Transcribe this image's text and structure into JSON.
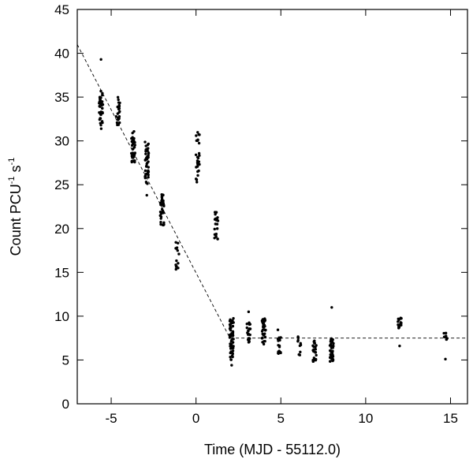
{
  "chart_data": {
    "type": "scatter",
    "title": "",
    "xlabel": "Time (MJD - 55112.0)",
    "ylabel_main": "Count PCU",
    "ylabel_sup1": "-1",
    "ylabel_mid": " s",
    "ylabel_sup2": "-1",
    "xlim": [
      -7,
      16
    ],
    "ylim": [
      0,
      45
    ],
    "xticks": [
      -5,
      0,
      5,
      10,
      15
    ],
    "xtick_labels": [
      "-5",
      "0",
      "5",
      "10",
      "15"
    ],
    "yticks": [
      0,
      5,
      10,
      15,
      20,
      25,
      30,
      35,
      40,
      45
    ],
    "ytick_labels": [
      "0",
      "5",
      "10",
      "15",
      "20",
      "25",
      "30",
      "35",
      "40",
      "45"
    ],
    "grid": false,
    "fit_line": {
      "style": "dashed",
      "points": [
        [
          -7,
          41.0
        ],
        [
          2.0,
          7.5
        ],
        [
          16,
          7.5
        ]
      ]
    },
    "clusters": [
      {
        "x": -5.6,
        "ymin": 31.3,
        "ymax": 35.8,
        "n": 40,
        "extra": [
          39.3
        ]
      },
      {
        "x": -4.6,
        "ymin": 31.8,
        "ymax": 35.0,
        "n": 24
      },
      {
        "x": -3.7,
        "ymin": 27.2,
        "ymax": 31.2,
        "n": 36
      },
      {
        "x": -2.9,
        "ymin": 25.0,
        "ymax": 30.0,
        "n": 44,
        "extra": [
          23.8
        ]
      },
      {
        "x": -2.0,
        "ymin": 20.3,
        "ymax": 23.9,
        "n": 34
      },
      {
        "x": -1.1,
        "ymin": 15.3,
        "ymax": 19.0,
        "n": 14
      },
      {
        "x": 0.1,
        "ymin": 25.2,
        "ymax": 31.2,
        "n": 28
      },
      {
        "x": 1.2,
        "ymin": 18.3,
        "ymax": 22.0,
        "n": 22
      },
      {
        "x": 2.1,
        "ymin": 5.0,
        "ymax": 9.8,
        "n": 60,
        "extra": [
          4.4
        ]
      },
      {
        "x": 3.1,
        "ymin": 6.8,
        "ymax": 9.3,
        "n": 22,
        "extra": [
          10.5
        ]
      },
      {
        "x": 4.0,
        "ymin": 6.8,
        "ymax": 9.8,
        "n": 34
      },
      {
        "x": 4.9,
        "ymin": 5.7,
        "ymax": 8.8,
        "n": 16
      },
      {
        "x": 6.1,
        "ymin": 5.5,
        "ymax": 7.9,
        "n": 10
      },
      {
        "x": 7.0,
        "ymin": 4.8,
        "ymax": 7.3,
        "n": 24
      },
      {
        "x": 8.0,
        "ymin": 4.8,
        "ymax": 7.5,
        "n": 40,
        "extra": [
          11.0
        ]
      },
      {
        "x": 12.0,
        "ymin": 7.8,
        "ymax": 9.8,
        "n": 16,
        "extra": [
          6.6
        ]
      },
      {
        "x": 14.7,
        "ymin": 7.3,
        "ymax": 8.1,
        "n": 8,
        "extra": [
          5.1
        ]
      }
    ]
  }
}
